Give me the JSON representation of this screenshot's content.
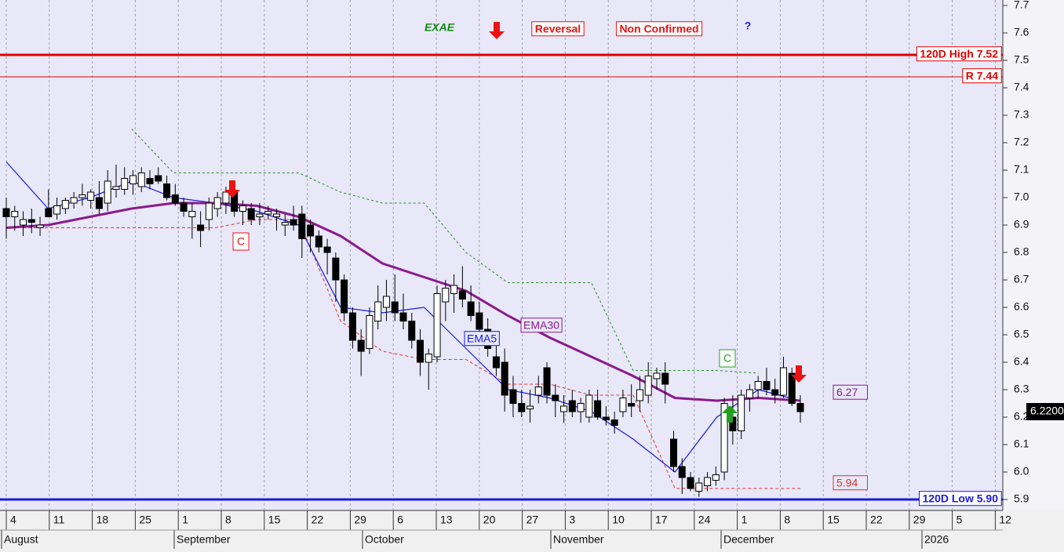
{
  "chart_data": {
    "type": "candlestick",
    "title": "EXAE",
    "signal": "Reversal",
    "status": "Non Confirmed",
    "question": "?",
    "markers": [
      "C",
      "C"
    ],
    "ylim": [
      5.86,
      7.72
    ],
    "yticks": [
      {
        "value": 5.9,
        "label": "5.9"
      },
      {
        "value": 6,
        "label": "6.0"
      },
      {
        "value": 6.1,
        "label": "6.1"
      },
      {
        "value": 6.2,
        "label": "6.2"
      },
      {
        "value": 6.3,
        "label": "6.3"
      },
      {
        "value": 6.4,
        "label": "6.4"
      },
      {
        "value": 6.5,
        "label": "6.5"
      },
      {
        "value": 6.6,
        "label": "6.6"
      },
      {
        "value": 6.7,
        "label": "6.7"
      },
      {
        "value": 6.8,
        "label": "6.8"
      },
      {
        "value": 6.9,
        "label": "6.9"
      },
      {
        "value": 7,
        "label": "7.0"
      },
      {
        "value": 7.1,
        "label": "7.1"
      },
      {
        "value": 7.2,
        "label": "7.2"
      },
      {
        "value": 7.3,
        "label": "7.3"
      },
      {
        "value": 7.4,
        "label": "7.4"
      },
      {
        "value": 7.5,
        "label": "7.5"
      },
      {
        "value": 7.6,
        "label": "7.6"
      },
      {
        "value": 7.7,
        "label": "7.7"
      }
    ],
    "x_tick_labels": [
      "4",
      "11",
      "18",
      "25",
      "1",
      "8",
      "15",
      "22",
      "29",
      "6",
      "13",
      "20",
      "27",
      "3",
      "10",
      "17",
      "24",
      "1",
      "8",
      "15",
      "22",
      "29",
      "5",
      "12"
    ],
    "month_labels": [
      "August",
      "September",
      "October",
      "November",
      "December",
      "2026"
    ],
    "grid": true,
    "background": "#e8e8f8",
    "candles": [
      [
        6.96,
        7.0,
        6.85,
        6.93
      ],
      [
        6.93,
        6.97,
        6.88,
        6.95
      ],
      [
        6.9,
        6.95,
        6.86,
        6.92
      ],
      [
        6.92,
        6.96,
        6.87,
        6.91
      ],
      [
        6.89,
        6.93,
        6.86,
        6.9
      ],
      [
        6.96,
        7.03,
        6.93,
        6.93
      ],
      [
        6.94,
        7.0,
        6.92,
        6.97
      ],
      [
        6.96,
        7.0,
        6.94,
        6.99
      ],
      [
        6.98,
        7.02,
        6.96,
        7.0
      ],
      [
        7.0,
        7.05,
        6.97,
        7.01
      ],
      [
        6.99,
        7.03,
        6.96,
        7.02
      ],
      [
        7.0,
        7.06,
        6.94,
        6.96
      ],
      [
        6.98,
        7.1,
        6.95,
        7.06
      ],
      [
        7.03,
        7.12,
        7.0,
        7.04
      ],
      [
        7.03,
        7.11,
        7.01,
        7.07
      ],
      [
        7.05,
        7.1,
        7.01,
        7.08
      ],
      [
        7.04,
        7.11,
        7.02,
        7.09
      ],
      [
        7.07,
        7.1,
        7.03,
        7.05
      ],
      [
        7.08,
        7.11,
        7.05,
        7.06
      ],
      [
        7.05,
        7.08,
        6.99,
        7.0
      ],
      [
        7.01,
        7.05,
        6.97,
        6.98
      ],
      [
        6.98,
        7.0,
        6.93,
        6.95
      ],
      [
        6.93,
        6.98,
        6.85,
        6.95
      ],
      [
        6.9,
        6.95,
        6.82,
        6.88
      ],
      [
        6.92,
        7.0,
        6.88,
        6.98
      ],
      [
        6.96,
        7.02,
        6.93,
        7.0
      ],
      [
        6.98,
        7.04,
        6.94,
        7.02
      ],
      [
        7.02,
        7.04,
        6.93,
        6.95
      ],
      [
        6.95,
        6.99,
        6.9,
        6.97
      ],
      [
        6.96,
        6.98,
        6.9,
        6.92
      ],
      [
        6.93,
        6.98,
        6.9,
        6.94
      ],
      [
        6.94,
        6.97,
        6.92,
        6.95
      ],
      [
        6.93,
        6.96,
        6.88,
        6.94
      ],
      [
        6.9,
        6.94,
        6.86,
        6.91
      ],
      [
        6.92,
        6.97,
        6.88,
        6.9
      ],
      [
        6.94,
        6.97,
        6.78,
        6.85
      ],
      [
        6.9,
        6.92,
        6.8,
        6.86
      ],
      [
        6.86,
        6.88,
        6.8,
        6.82
      ],
      [
        6.82,
        6.85,
        6.72,
        6.8
      ],
      [
        6.78,
        6.8,
        6.62,
        6.7
      ],
      [
        6.7,
        6.72,
        6.55,
        6.58
      ],
      [
        6.58,
        6.6,
        6.45,
        6.48
      ],
      [
        6.48,
        6.52,
        6.35,
        6.44
      ],
      [
        6.45,
        6.6,
        6.43,
        6.57
      ],
      [
        6.55,
        6.68,
        6.52,
        6.62
      ],
      [
        6.6,
        6.7,
        6.55,
        6.64
      ],
      [
        6.62,
        6.72,
        6.55,
        6.58
      ],
      [
        6.58,
        6.65,
        6.52,
        6.55
      ],
      [
        6.55,
        6.58,
        6.45,
        6.48
      ],
      [
        6.48,
        6.52,
        6.35,
        6.4
      ],
      [
        6.4,
        6.45,
        6.3,
        6.43
      ],
      [
        6.42,
        6.68,
        6.4,
        6.65
      ],
      [
        6.62,
        6.7,
        6.55,
        6.67
      ],
      [
        6.65,
        6.72,
        6.58,
        6.68
      ],
      [
        6.66,
        6.75,
        6.6,
        6.63
      ],
      [
        6.62,
        6.68,
        6.55,
        6.57
      ],
      [
        6.58,
        6.62,
        6.48,
        6.52
      ],
      [
        6.52,
        6.56,
        6.42,
        6.45
      ],
      [
        6.42,
        6.48,
        6.35,
        6.38
      ],
      [
        6.4,
        6.45,
        6.22,
        6.28
      ],
      [
        6.3,
        6.35,
        6.2,
        6.25
      ],
      [
        6.25,
        6.3,
        6.2,
        6.22
      ],
      [
        6.23,
        6.3,
        6.18,
        6.24
      ],
      [
        6.28,
        6.35,
        6.25,
        6.31
      ],
      [
        6.38,
        6.4,
        6.25,
        6.28
      ],
      [
        6.28,
        6.32,
        6.2,
        6.26
      ],
      [
        6.22,
        6.28,
        6.18,
        6.24
      ],
      [
        6.26,
        6.3,
        6.2,
        6.22
      ],
      [
        6.22,
        6.27,
        6.18,
        6.25
      ],
      [
        6.2,
        6.3,
        6.18,
        6.28
      ],
      [
        6.26,
        6.3,
        6.19,
        6.2
      ],
      [
        6.2,
        6.24,
        6.17,
        6.19
      ],
      [
        6.19,
        6.22,
        6.14,
        6.17
      ],
      [
        6.22,
        6.3,
        6.2,
        6.27
      ],
      [
        6.25,
        6.32,
        6.2,
        6.24
      ],
      [
        6.26,
        6.35,
        6.22,
        6.3
      ],
      [
        6.28,
        6.4,
        6.25,
        6.35
      ],
      [
        6.34,
        6.38,
        6.3,
        6.36
      ],
      [
        6.36,
        6.4,
        6.25,
        6.32
      ],
      [
        6.12,
        6.15,
        6.0,
        6.02
      ],
      [
        6.02,
        6.05,
        5.92,
        5.98
      ],
      [
        5.98,
        6.0,
        5.93,
        5.94
      ],
      [
        5.93,
        5.98,
        5.91,
        5.96
      ],
      [
        5.95,
        6.0,
        5.93,
        5.98
      ],
      [
        5.97,
        6.02,
        5.95,
        5.99
      ],
      [
        6.0,
        6.27,
        5.97,
        6.25
      ],
      [
        6.2,
        6.28,
        6.1,
        6.15
      ],
      [
        6.15,
        6.3,
        6.12,
        6.28
      ],
      [
        6.27,
        6.32,
        6.22,
        6.3
      ],
      [
        6.3,
        6.35,
        6.27,
        6.33
      ],
      [
        6.33,
        6.38,
        6.28,
        6.3
      ],
      [
        6.3,
        6.34,
        6.25,
        6.28
      ],
      [
        6.28,
        6.42,
        6.27,
        6.38
      ],
      [
        6.36,
        6.38,
        6.24,
        6.25
      ],
      [
        6.25,
        6.28,
        6.18,
        6.22
      ]
    ],
    "series": [
      {
        "name": "EMA5",
        "color": "#1a1ae0",
        "values": [
          7.13,
          6.96,
          7.0,
          7.06,
          7.0,
          6.98,
          6.95,
          6.9,
          6.6,
          6.58,
          6.6,
          6.45,
          6.3,
          6.27,
          6.22,
          6.12,
          6.0,
          6.2,
          6.3,
          6.26
        ]
      },
      {
        "name": "EMA30",
        "color": "#8b1a8b",
        "values": [
          6.89,
          6.9,
          6.93,
          6.96,
          6.98,
          6.98,
          6.97,
          6.93,
          6.86,
          6.76,
          6.71,
          6.66,
          6.57,
          6.49,
          6.42,
          6.35,
          6.27,
          6.26,
          6.27,
          6.26
        ]
      }
    ],
    "trailing_stop": {
      "color": "#228b22",
      "values": [
        null,
        null,
        null,
        7.25,
        7.09,
        7.09,
        7.09,
        7.09,
        7.02,
        6.98,
        6.98,
        6.8,
        6.69,
        6.69,
        6.69,
        6.37,
        6.37,
        6.37,
        6.36,
        null
      ]
    },
    "support": {
      "color": "#e03030",
      "values": [
        6.89,
        6.89,
        6.89,
        6.89,
        6.89,
        6.89,
        6.92,
        6.92,
        6.55,
        6.44,
        6.41,
        6.41,
        6.32,
        6.32,
        6.28,
        6.28,
        5.94,
        5.94,
        5.94,
        5.94
      ]
    },
    "levels": [
      {
        "label": "120D High 7.52",
        "value": 7.52,
        "color": "#e00000"
      },
      {
        "label": "R 7.44",
        "value": 7.44,
        "color": "#e00000"
      },
      {
        "label": "120D Low 5.90",
        "value": 5.9,
        "color": "#1a1ae0"
      }
    ],
    "value_boxes": [
      {
        "value": 6.27,
        "label": "6.27",
        "color": "#8b1a8b"
      },
      {
        "value": 5.94,
        "label": "5.94",
        "color": "#e03030"
      }
    ],
    "last_price": {
      "value": 6.22,
      "label": "6.22000"
    }
  }
}
